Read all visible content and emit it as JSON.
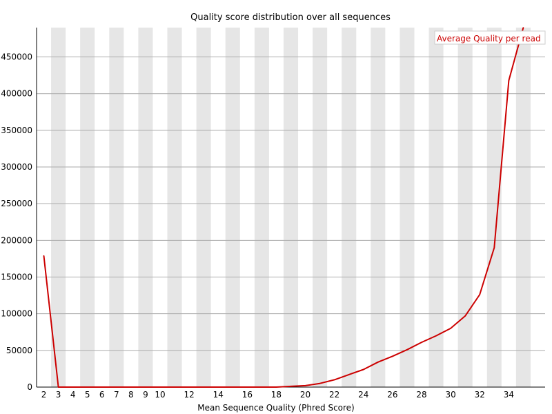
{
  "chart_data": {
    "type": "line",
    "title": "Quality score distribution over all sequences",
    "xlabel": "Mean Sequence Quality (Phred Score)",
    "ylabel": "",
    "x": [
      2,
      3,
      4,
      5,
      6,
      7,
      8,
      9,
      10,
      11,
      12,
      13,
      14,
      15,
      16,
      17,
      18,
      19,
      20,
      21,
      22,
      23,
      24,
      25,
      26,
      27,
      28,
      29,
      30,
      31,
      32,
      33,
      34,
      35
    ],
    "x_tick_labels": [
      "2",
      "3",
      "4",
      "5",
      "6",
      "7",
      "8",
      "9",
      "10",
      "12",
      "14",
      "16",
      "18",
      "20",
      "22",
      "24",
      "26",
      "28",
      "30",
      "32",
      "34"
    ],
    "xlim": [
      1.5,
      36.5
    ],
    "ylim": [
      0,
      490000
    ],
    "y_ticks": [
      0,
      50000,
      100000,
      150000,
      200000,
      250000,
      300000,
      350000,
      400000,
      450000
    ],
    "y_tick_labels": [
      "0",
      "50000",
      "100000",
      "150000",
      "200000",
      "250000",
      "300000",
      "350000",
      "400000",
      "450000"
    ],
    "grid": true,
    "legend_position": "top-right",
    "series": [
      {
        "name": "Average Quality per read",
        "color": "#cc0000",
        "values": [
          179000,
          0,
          0,
          0,
          0,
          0,
          0,
          0,
          0,
          0,
          0,
          0,
          0,
          0,
          0,
          0,
          0,
          1000,
          2000,
          5000,
          10000,
          17000,
          24000,
          34000,
          42000,
          51000,
          61000,
          70000,
          80000,
          97000,
          126000,
          190000,
          418000,
          490000
        ]
      }
    ],
    "band_color": "#e6e6e6",
    "gridline_color": "#aaaaaa"
  }
}
